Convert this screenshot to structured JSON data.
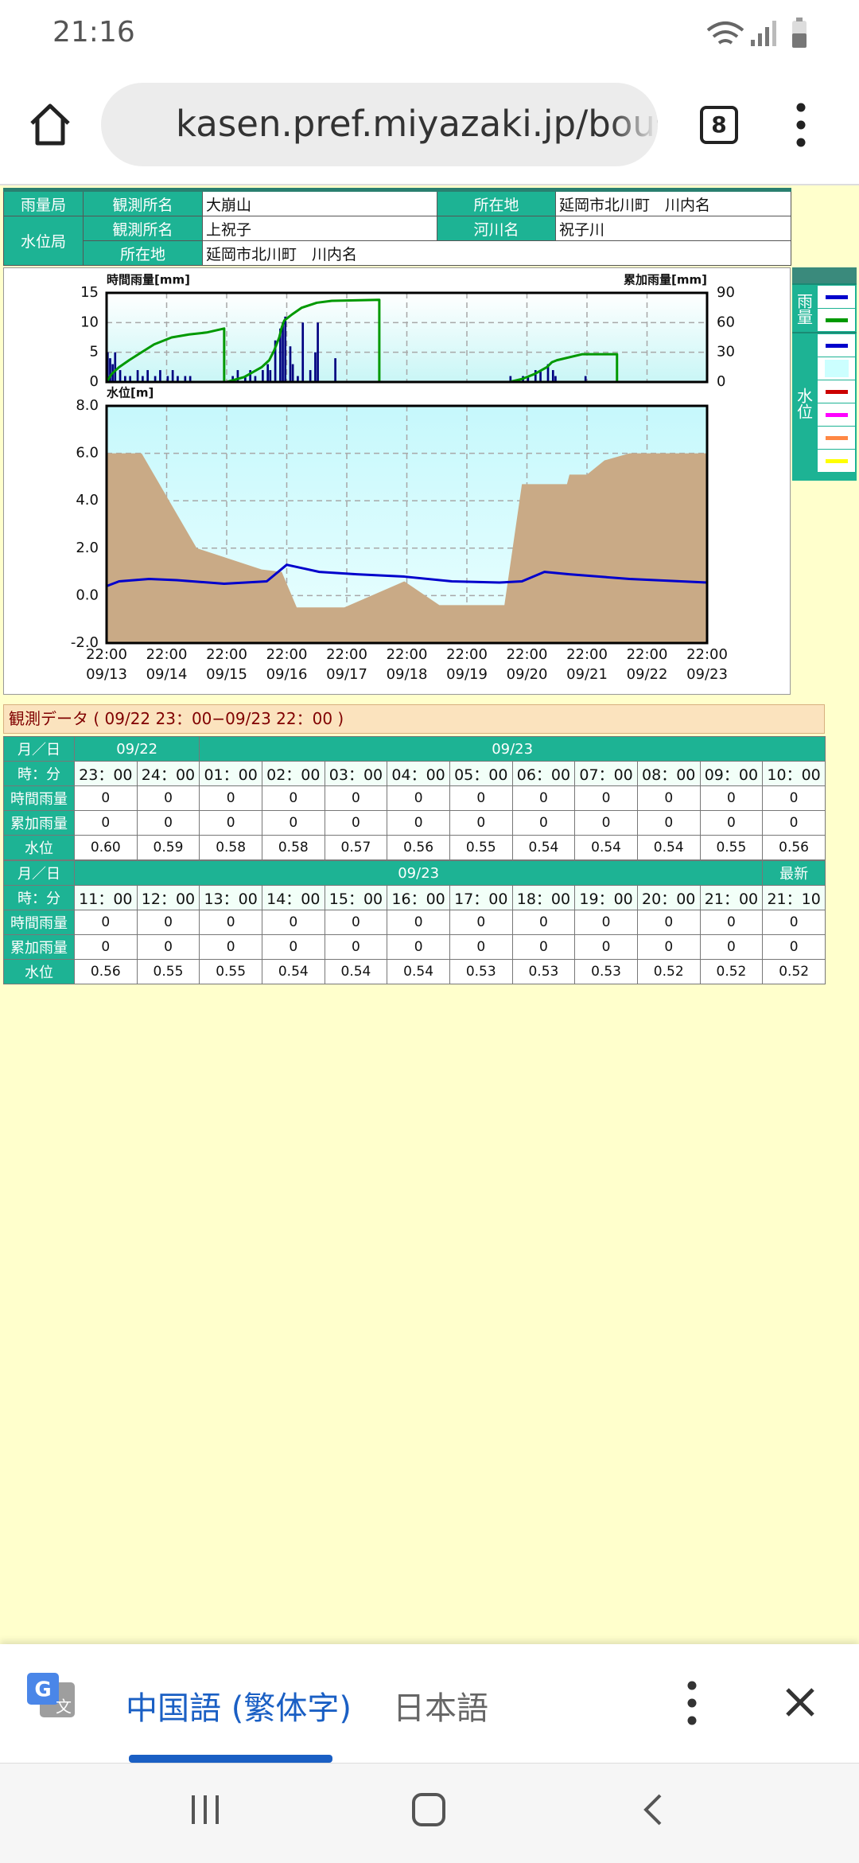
{
  "status_bar": {
    "time": "21:16"
  },
  "browser": {
    "url": "kasen.pref.miyazaki.jp/bousa",
    "tab_count": "8"
  },
  "info": {
    "rows": [
      [
        "雨量局",
        "観測所名",
        "大崩山",
        "所在地",
        "延岡市北川町　川内名"
      ],
      [
        "水位局",
        "観測所名",
        "上祝子",
        "河川名",
        "祝子川"
      ],
      [
        "所在地",
        "延岡市北川町　川内名"
      ]
    ]
  },
  "chart_data": [
    {
      "type": "bar",
      "y_label": "時間雨量[mm]",
      "y2_label": "累加雨量[mm]",
      "xlim": [
        0,
        240
      ],
      "xticks": [
        0,
        24,
        48,
        72,
        96,
        120,
        144,
        168,
        192,
        216,
        240
      ],
      "ylim": [
        0,
        15
      ],
      "yticks": [
        0,
        5,
        10,
        15
      ],
      "y2lim": [
        0,
        90
      ],
      "y2ticks": [
        0,
        30,
        60,
        90
      ],
      "grid": true,
      "series": [
        {
          "type": "bar",
          "color": "#000080",
          "x": [
            0,
            1,
            2,
            3,
            5,
            7,
            9,
            12,
            14,
            16,
            19,
            21,
            24,
            26,
            28,
            31,
            33,
            50,
            52,
            55,
            57,
            59,
            62,
            64,
            65,
            67,
            69,
            70,
            71,
            73,
            74,
            76,
            78,
            81,
            83,
            84,
            91,
            161,
            166,
            168,
            171,
            173,
            176,
            178,
            179,
            191
          ],
          "values": [
            5,
            4,
            3,
            5,
            2,
            1,
            1,
            2,
            1,
            2,
            1,
            2,
            1,
            2,
            1,
            1,
            1,
            1,
            2,
            1,
            2,
            1,
            2,
            3,
            2,
            7,
            9,
            10,
            11,
            6,
            3,
            1,
            10,
            2,
            5,
            10,
            4,
            1,
            1,
            1,
            2,
            2,
            3,
            2,
            1,
            1
          ]
        },
        {
          "type": "line",
          "color": "#009900",
          "axis": "y2",
          "x": [
            0,
            2,
            5,
            9,
            14,
            19,
            26,
            33,
            40,
            47,
            47,
            null,
            48,
            55,
            62,
            65,
            67,
            69,
            70,
            71,
            74,
            78,
            84,
            90,
            109,
            109,
            null,
            161,
            166,
            171,
            176,
            178,
            180,
            190,
            204,
            204
          ],
          "values": [
            0,
            8,
            15,
            22,
            30,
            38,
            45,
            48,
            50,
            54,
            0,
            null,
            0,
            5,
            15,
            22,
            32,
            45,
            55,
            62,
            68,
            75,
            80,
            82,
            83,
            0,
            null,
            0,
            3,
            8,
            15,
            20,
            22,
            28,
            28,
            0
          ]
        }
      ]
    },
    {
      "type": "line",
      "y_label": "水位[m]",
      "xlim": [
        0,
        240
      ],
      "xticks": [
        {
          "value": 0,
          "label": "22:00",
          "date": "09/13"
        },
        {
          "value": 24,
          "label": "22:00",
          "date": "09/14"
        },
        {
          "value": 48,
          "label": "22:00",
          "date": "09/15"
        },
        {
          "value": 72,
          "label": "22:00",
          "date": "09/16"
        },
        {
          "value": 96,
          "label": "22:00",
          "date": "09/17"
        },
        {
          "value": 120,
          "label": "22:00",
          "date": "09/18"
        },
        {
          "value": 144,
          "label": "22:00",
          "date": "09/19"
        },
        {
          "value": 168,
          "label": "22:00",
          "date": "09/20"
        },
        {
          "value": 192,
          "label": "22:00",
          "date": "09/21"
        },
        {
          "value": 216,
          "label": "22:00",
          "date": "09/22"
        },
        {
          "value": 240,
          "label": "22:00",
          "date": "09/23"
        }
      ],
      "ylim": [
        -2,
        8
      ],
      "yticks": [
        {
          "value": -2,
          "label": "-2.0"
        },
        {
          "value": 0,
          "label": "0.0"
        },
        {
          "value": 2,
          "label": "2.0"
        },
        {
          "value": 4,
          "label": "4.0"
        },
        {
          "value": 6,
          "label": "6.0"
        },
        {
          "value": 8,
          "label": "8.0"
        }
      ],
      "grid": true,
      "series": [
        {
          "type": "area",
          "color": "#c9aa86",
          "x": [
            0,
            14,
            36,
            62,
            70,
            76,
            95,
            119,
            133,
            159,
            166,
            184,
            185,
            192,
            199,
            209,
            240
          ],
          "values": [
            6.0,
            6.0,
            2.0,
            1.1,
            1.0,
            -0.5,
            -0.5,
            0.6,
            -0.4,
            -0.4,
            4.7,
            4.7,
            5.1,
            5.1,
            5.7,
            6.0,
            6.0
          ]
        },
        {
          "type": "line",
          "color": "#0000cc",
          "x": [
            0,
            5,
            17,
            28,
            47,
            64,
            72,
            85,
            100,
            119,
            138,
            157,
            166,
            175,
            185,
            209,
            240
          ],
          "values": [
            0.4,
            0.6,
            0.7,
            0.65,
            0.5,
            0.6,
            1.3,
            1.0,
            0.9,
            0.8,
            0.6,
            0.55,
            0.6,
            1.0,
            0.9,
            0.7,
            0.55
          ]
        }
      ]
    }
  ],
  "legend": {
    "rain": "雨量",
    "water": "水位",
    "rain_items": [
      {
        "color": "#0000cc",
        "style": "line"
      },
      {
        "color": "#009900",
        "style": "line"
      }
    ],
    "water_items": [
      {
        "color": "#0000cc",
        "style": "line"
      },
      {
        "color": "#ccffff",
        "style": "fill"
      },
      {
        "color": "#cc0000",
        "style": "line"
      },
      {
        "color": "#ff00ff",
        "style": "line"
      },
      {
        "color": "#ff8844",
        "style": "line"
      },
      {
        "color": "#ffff00",
        "style": "line"
      }
    ]
  },
  "observation": {
    "title": "観測データ ( 09/22 23：00−09/23 22：00 )",
    "row_labels": [
      "月／日",
      "時：分",
      "時間雨量",
      "累加雨量",
      "水位"
    ],
    "tables": [
      {
        "dates": [
          {
            "label": "09/22",
            "span": 2
          },
          {
            "label": "09/23",
            "span": 10
          }
        ],
        "times": [
          "23：00",
          "24：00",
          "01：00",
          "02：00",
          "03：00",
          "04：00",
          "05：00",
          "06：00",
          "07：00",
          "08：00",
          "09：00",
          "10：00"
        ],
        "hourly_rain": [
          "0",
          "0",
          "0",
          "0",
          "0",
          "0",
          "0",
          "0",
          "0",
          "0",
          "0",
          "0"
        ],
        "cumulative_rain": [
          "0",
          "0",
          "0",
          "0",
          "0",
          "0",
          "0",
          "0",
          "0",
          "0",
          "0",
          "0"
        ],
        "water_level": [
          "0.60",
          "0.59",
          "0.58",
          "0.58",
          "0.57",
          "0.56",
          "0.55",
          "0.54",
          "0.54",
          "0.54",
          "0.55",
          "0.56"
        ]
      },
      {
        "dates": [
          {
            "label": "09/23",
            "span": 11
          },
          {
            "label": "最新",
            "span": 1
          }
        ],
        "times": [
          "11：00",
          "12：00",
          "13：00",
          "14：00",
          "15：00",
          "16：00",
          "17：00",
          "18：00",
          "19：00",
          "20：00",
          "21：00",
          "21：10"
        ],
        "hourly_rain": [
          "0",
          "0",
          "0",
          "0",
          "0",
          "0",
          "0",
          "0",
          "0",
          "0",
          "0",
          "0"
        ],
        "cumulative_rain": [
          "0",
          "0",
          "0",
          "0",
          "0",
          "0",
          "0",
          "0",
          "0",
          "0",
          "0",
          "0"
        ],
        "water_level": [
          "0.56",
          "0.55",
          "0.55",
          "0.54",
          "0.54",
          "0.54",
          "0.53",
          "0.53",
          "0.53",
          "0.52",
          "0.52",
          "0.52"
        ]
      }
    ]
  },
  "translate_bar": {
    "icon_letters": [
      "G",
      "文"
    ],
    "languages": [
      "中国語 (繁体字)",
      "日本語"
    ]
  }
}
